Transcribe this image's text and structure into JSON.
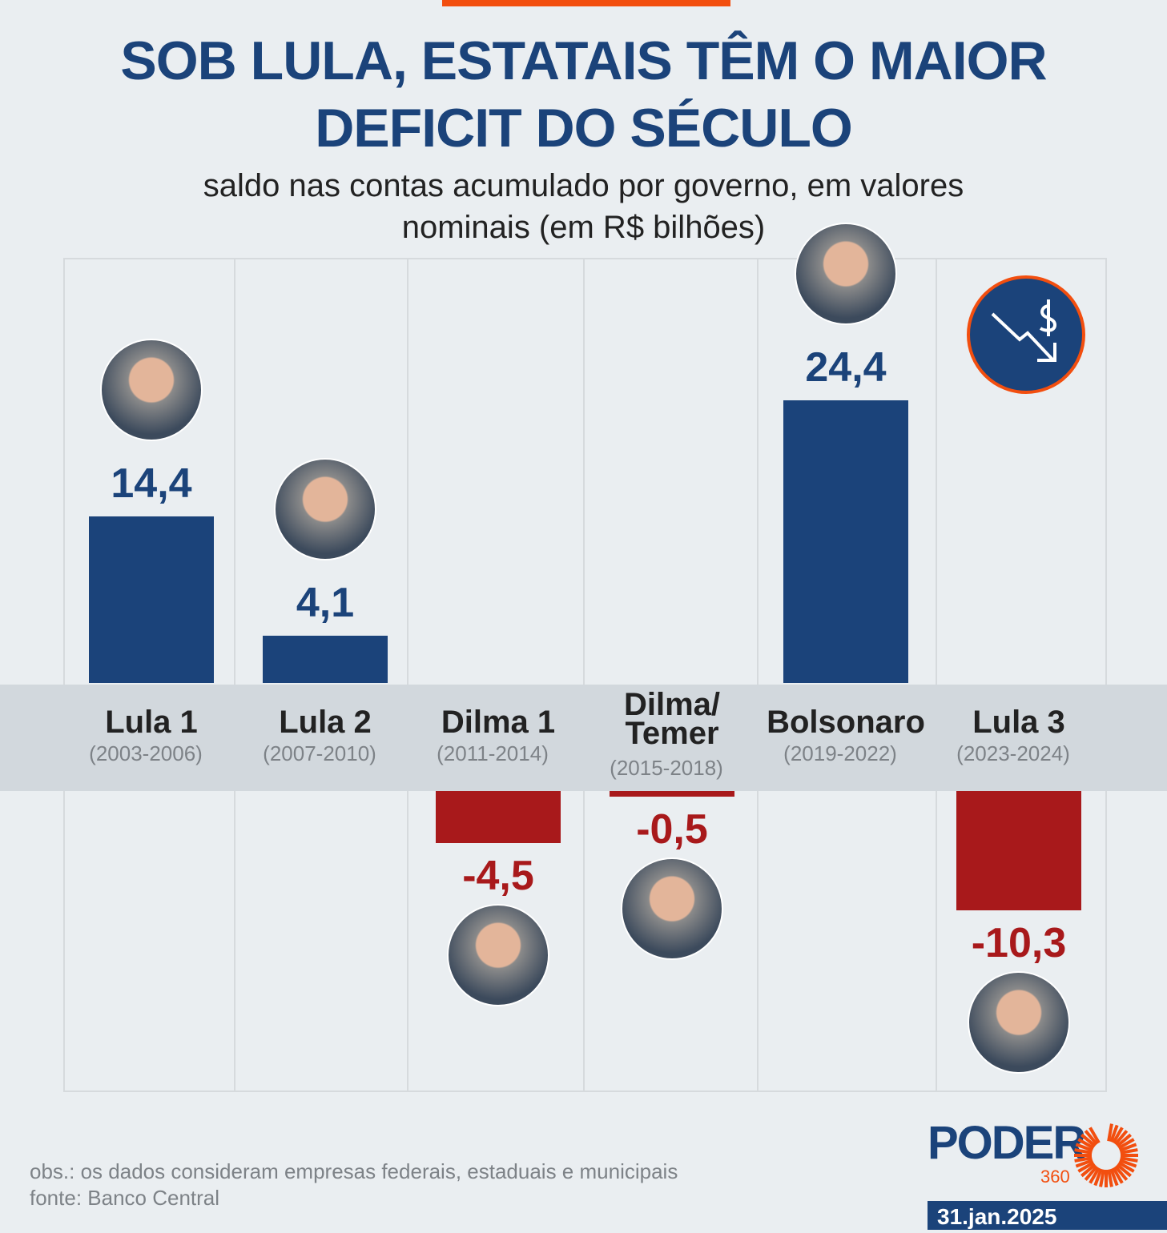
{
  "header": {
    "title_line1": "SOB LULA, ESTATAIS TÊM O MAIOR",
    "title_line2": "DEFICIT DO SÉCULO",
    "subtitle_line1": "saldo nas contas acumulado por governo, em valores",
    "subtitle_line2": "nominais (em R$ bilhões)"
  },
  "chart_data": {
    "type": "bar",
    "title": "SOB LULA, ESTATAIS TÊM O MAIOR DEFICIT DO SÉCULO",
    "ylabel": "R$ bilhões",
    "categories": [
      "Lula 1",
      "Lula 2",
      "Dilma 1",
      "Dilma/ Temer",
      "Bolsonaro",
      "Lula 3"
    ],
    "years": [
      "(2003-2006)",
      "(2007-2010)",
      "(2011-2014)",
      "(2015-2018)",
      "(2019-2022)",
      "(2023-2024)"
    ],
    "values": [
      14.4,
      4.1,
      -4.5,
      -0.5,
      24.4,
      -10.3
    ],
    "labels": [
      "14,4",
      "4,1",
      "-4,5",
      "-0,5",
      "24,4",
      "-10,3"
    ],
    "colors": {
      "positive": "#1b437a",
      "negative": "#a8191b"
    }
  },
  "footer": {
    "obs": "obs.: os dados consideram empresas federais, estaduais e municipais",
    "source": "fonte: Banco Central",
    "brand": "PODER",
    "brand_sub": "360",
    "date": "31.jan.2025"
  }
}
